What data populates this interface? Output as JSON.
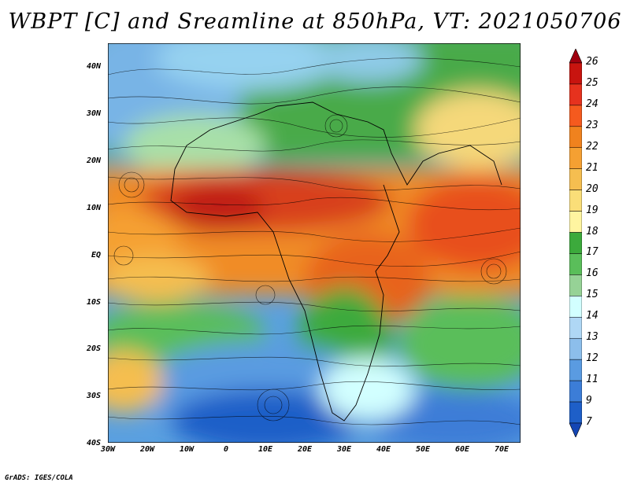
{
  "title": "WBPT [C] and Sreamline at 850hPa, VT: 2021050706",
  "credit": "GrADS: IGES/COLA",
  "map": {
    "lat_labels": [
      "40N",
      "30N",
      "20N",
      "10N",
      "EQ",
      "10S",
      "20S",
      "30S",
      "40S"
    ],
    "lon_labels": [
      "30W",
      "20W",
      "10W",
      "0",
      "10E",
      "20E",
      "30E",
      "40E",
      "50E",
      "60E",
      "70E"
    ]
  },
  "colorbar": {
    "labels": [
      "26",
      "25",
      "24",
      "23",
      "22",
      "21",
      "20",
      "19",
      "18",
      "17",
      "16",
      "15",
      "14",
      "13",
      "12",
      "11",
      "9",
      "7"
    ],
    "colors": [
      "#a0000f",
      "#c8140f",
      "#e6321e",
      "#f55a1e",
      "#f0821e",
      "#f5a032",
      "#f5be50",
      "#fade78",
      "#fff5a0",
      "#3caa3c",
      "#5abe5a",
      "#96d296",
      "#d2ffff",
      "#afd7f5",
      "#8cbeeb",
      "#5a9be1",
      "#3c7dd7",
      "#1e5fc8",
      "#1446b4"
    ]
  }
}
